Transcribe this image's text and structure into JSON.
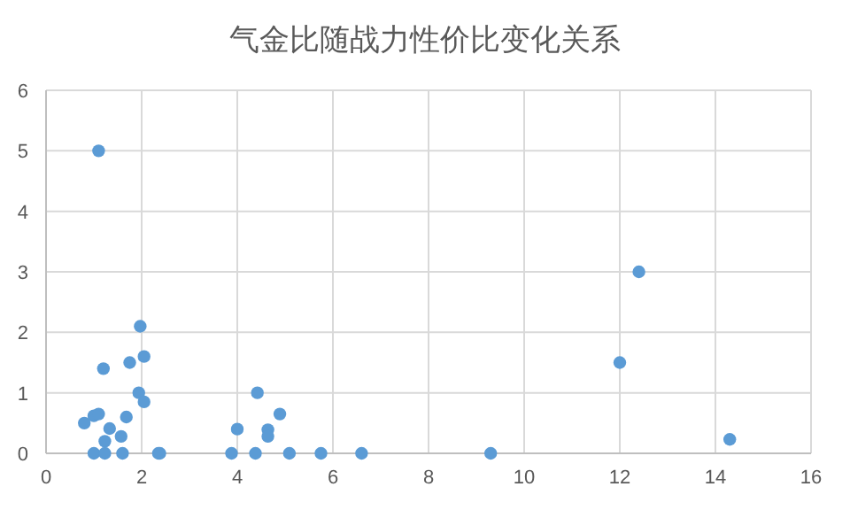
{
  "chart_data": {
    "type": "scatter",
    "title": "气金比随战力性价比变化关系",
    "x": [
      0.8,
      1.0,
      1.1,
      1.2,
      1.33,
      1.23,
      1.57,
      1.68,
      1.75,
      1.97,
      2.05,
      1.94,
      2.05,
      1.0,
      1.23,
      1.6,
      2.35,
      2.38,
      3.88,
      4.38,
      5.09,
      5.75,
      6.6,
      4.0,
      4.42,
      4.64,
      4.64,
      4.89,
      1.1,
      12.4,
      12.0,
      14.3,
      9.3
    ],
    "values": [
      0.5,
      0.62,
      0.65,
      1.4,
      0.41,
      0.2,
      0.28,
      0.6,
      1.5,
      2.1,
      1.6,
      1.0,
      0.85,
      0,
      0,
      0,
      0,
      0,
      0,
      0,
      0,
      0,
      0,
      0.4,
      1.0,
      0.39,
      0.28,
      0.65,
      5,
      3,
      1.5,
      0.23,
      0
    ],
    "color": "#5b9bd5",
    "marker": "circle",
    "xlim": [
      0,
      16
    ],
    "ylim": [
      0,
      6
    ],
    "xticks": [
      0,
      2,
      4,
      6,
      8,
      10,
      12,
      14,
      16
    ],
    "yticks": [
      0,
      1,
      2,
      3,
      4,
      5,
      6
    ],
    "grid": true
  }
}
